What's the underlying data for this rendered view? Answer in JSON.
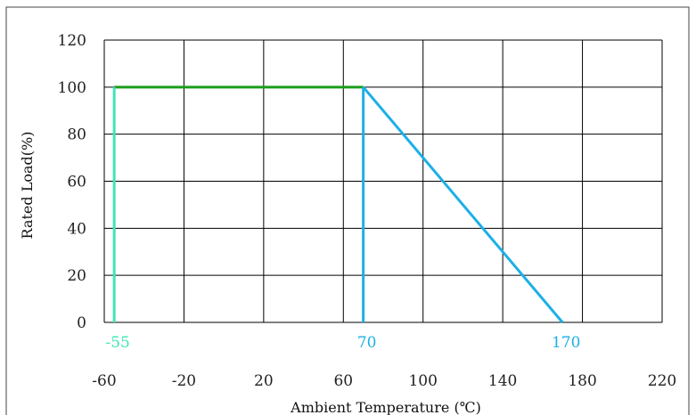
{
  "chart_data": {
    "type": "line",
    "title": "",
    "xlabel": "Ambient Temperature (℃)",
    "ylabel": "Rated Load(%)",
    "xlim": [
      -60,
      220
    ],
    "ylim": [
      0,
      120
    ],
    "x_ticks": [
      "-60",
      "-20",
      "20",
      "60",
      "100",
      "140",
      "180",
      "220"
    ],
    "y_ticks": [
      "0",
      "20",
      "40",
      "60",
      "80",
      "100",
      "120"
    ],
    "grid": true,
    "legend": "none",
    "series": [
      {
        "color": "#1a9e1a",
        "points": [
          [
            -55,
            100
          ],
          [
            70,
            100
          ]
        ]
      },
      {
        "color": "#3ee6b4",
        "points": [
          [
            -55,
            0
          ],
          [
            -55,
            100
          ]
        ]
      },
      {
        "color": "#1cb0e6",
        "points": [
          [
            70,
            0
          ],
          [
            70,
            100
          ]
        ]
      },
      {
        "color": "#1cb0e6",
        "points": [
          [
            70,
            100
          ],
          [
            170,
            0
          ]
        ]
      }
    ],
    "annotations": [
      {
        "text": "-55",
        "x": -55,
        "color": "#3ee6b4"
      },
      {
        "text": "70",
        "x": 70,
        "color": "#1cb0e6"
      },
      {
        "text": "170",
        "x": 170,
        "color": "#1cb0e6"
      }
    ]
  }
}
